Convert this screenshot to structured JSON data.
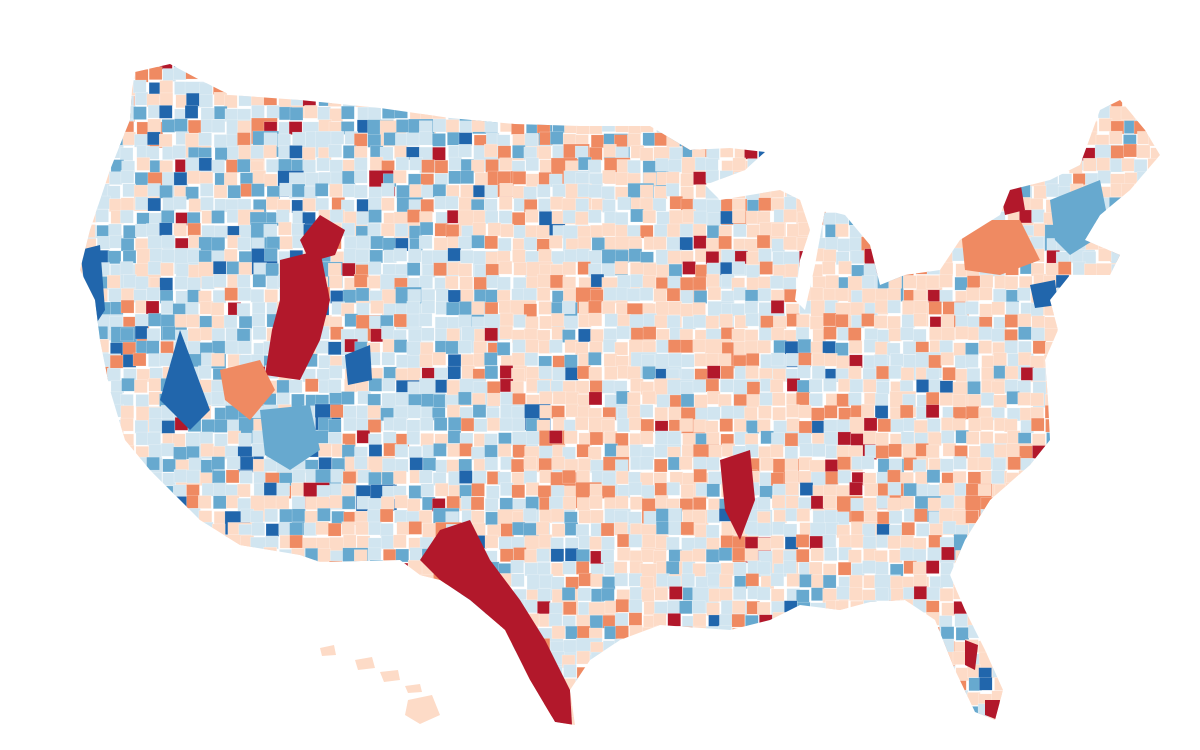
{
  "map": {
    "type": "choropleth",
    "colors": [
      "#b2182b",
      "#ef8a62",
      "#fddbc7",
      "#d1e5f0",
      "#67a9cf",
      "#2166ac"
    ]
  }
}
